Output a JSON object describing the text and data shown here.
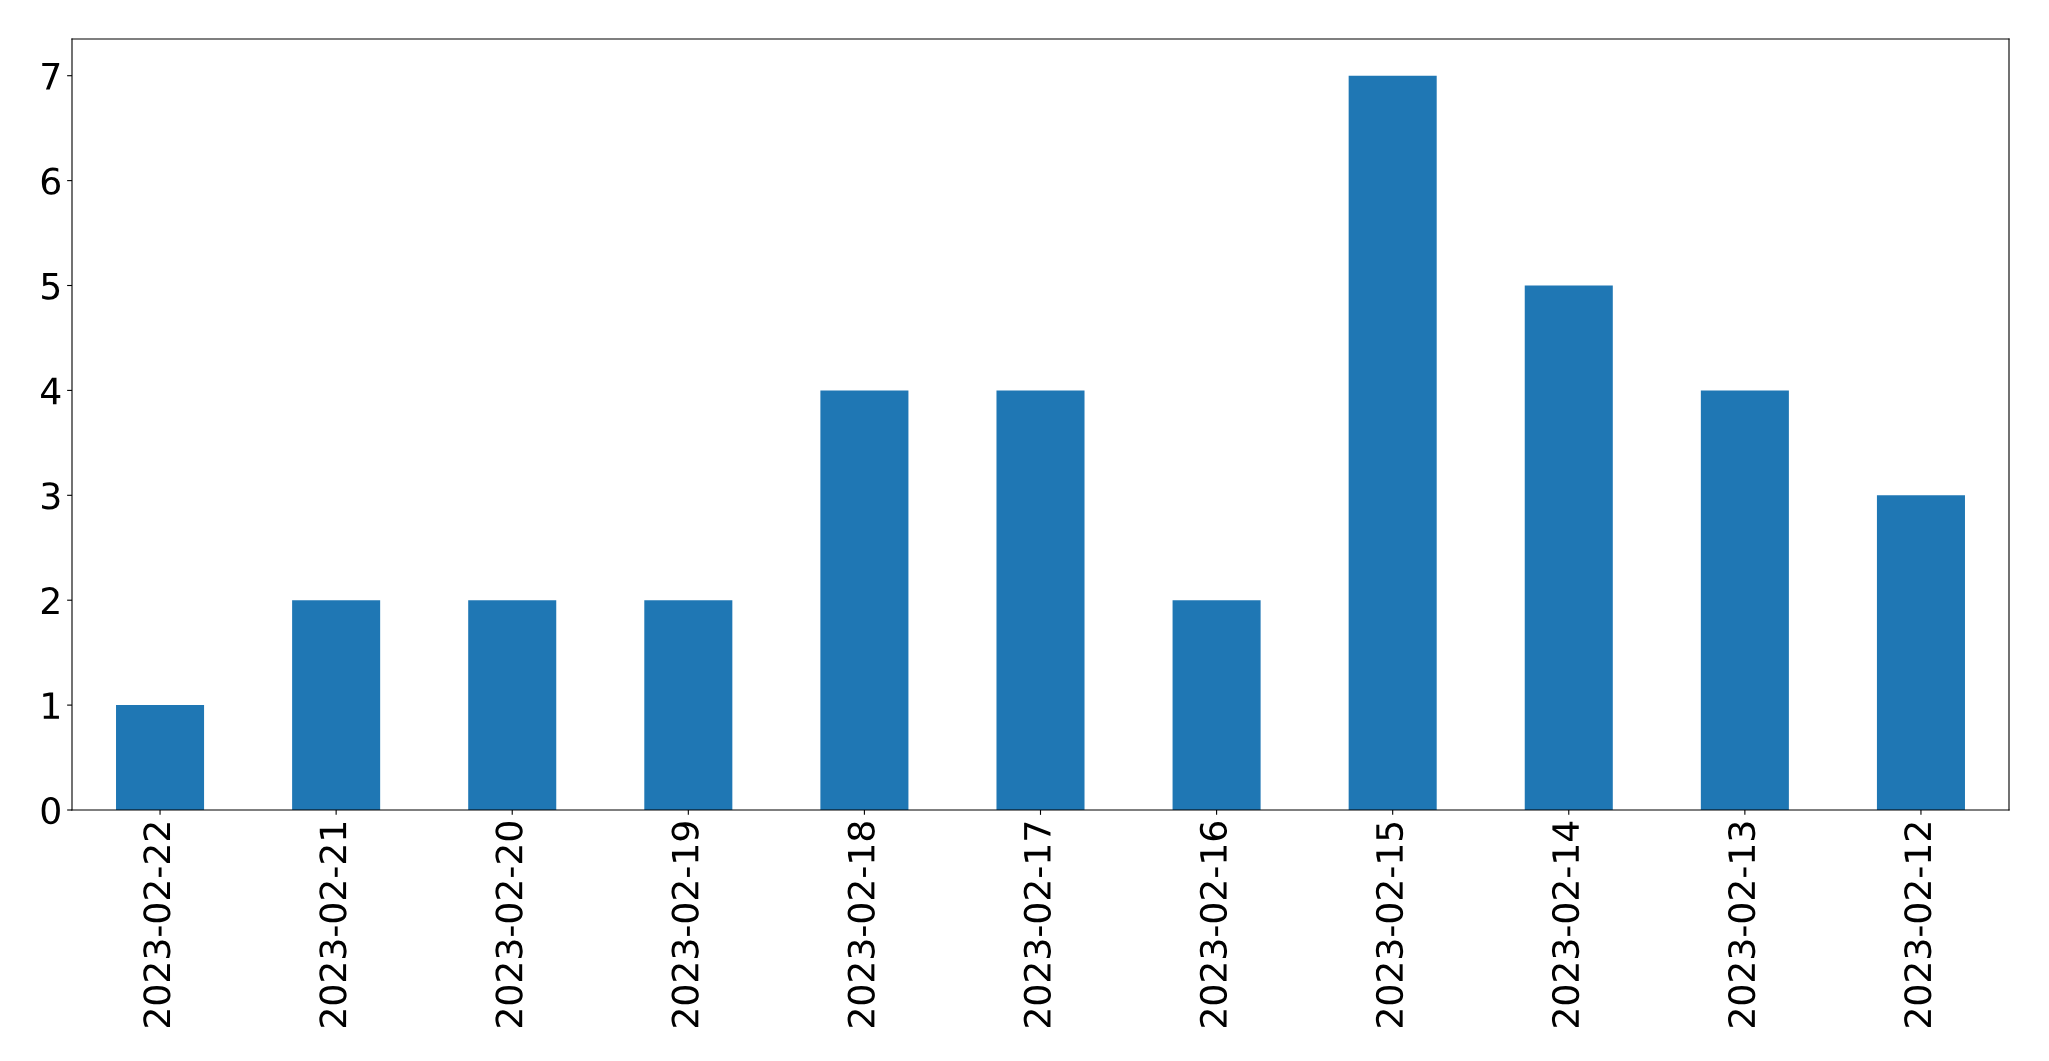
{
  "chart_data": {
    "type": "bar",
    "categories": [
      "2023-02-22",
      "2023-02-21",
      "2023-02-20",
      "2023-02-19",
      "2023-02-18",
      "2023-02-17",
      "2023-02-16",
      "2023-02-15",
      "2023-02-14",
      "2023-02-13",
      "2023-02-12"
    ],
    "values": [
      1,
      2,
      2,
      2,
      4,
      4,
      2,
      7,
      5,
      4,
      3
    ],
    "color": "#1f77b4",
    "ylim": [
      0,
      7.35
    ],
    "yticks": [
      0,
      1,
      2,
      3,
      4,
      5,
      6,
      7
    ],
    "grid": false
  }
}
